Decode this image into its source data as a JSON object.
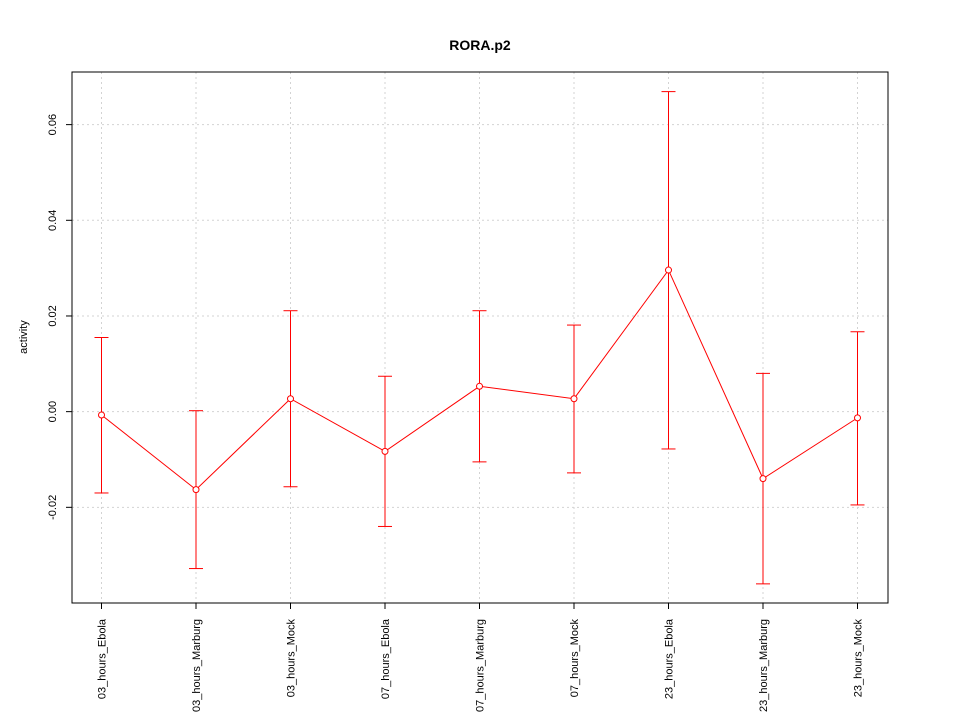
{
  "chart_data": {
    "type": "line",
    "title": "RORA.p2",
    "xlabel": "",
    "ylabel": "activity",
    "categories": [
      "03_hours_Ebola",
      "03_hours_Marburg",
      "03_hours_Mock",
      "07_hours_Ebola",
      "07_hours_Marburg",
      "07_hours_Mock",
      "23_hours_Ebola",
      "23_hours_Marburg",
      "23_hours_Mock"
    ],
    "series": [
      {
        "values": [
          -0.0007,
          -0.0163,
          0.0027,
          -0.0083,
          0.0053,
          0.0027,
          0.0296,
          -0.014,
          -0.0013
        ],
        "upper": [
          0.0155,
          0.0002,
          0.0211,
          0.0074,
          0.0211,
          0.0181,
          0.0669,
          0.008,
          0.0167
        ],
        "lower": [
          -0.017,
          -0.0328,
          -0.0157,
          -0.024,
          -0.0105,
          -0.0128,
          -0.0078,
          -0.036,
          -0.0195
        ],
        "color": "#ff0000"
      }
    ],
    "ylim": [
      -0.04,
      0.071
    ],
    "yticks": [
      -0.02,
      0.0,
      0.02,
      0.04,
      0.06
    ],
    "ytick_labels": [
      "-0.02",
      "0.00",
      "0.02",
      "0.04",
      "0.06"
    ],
    "grid": true,
    "grid_color": "#d3d3d3"
  }
}
